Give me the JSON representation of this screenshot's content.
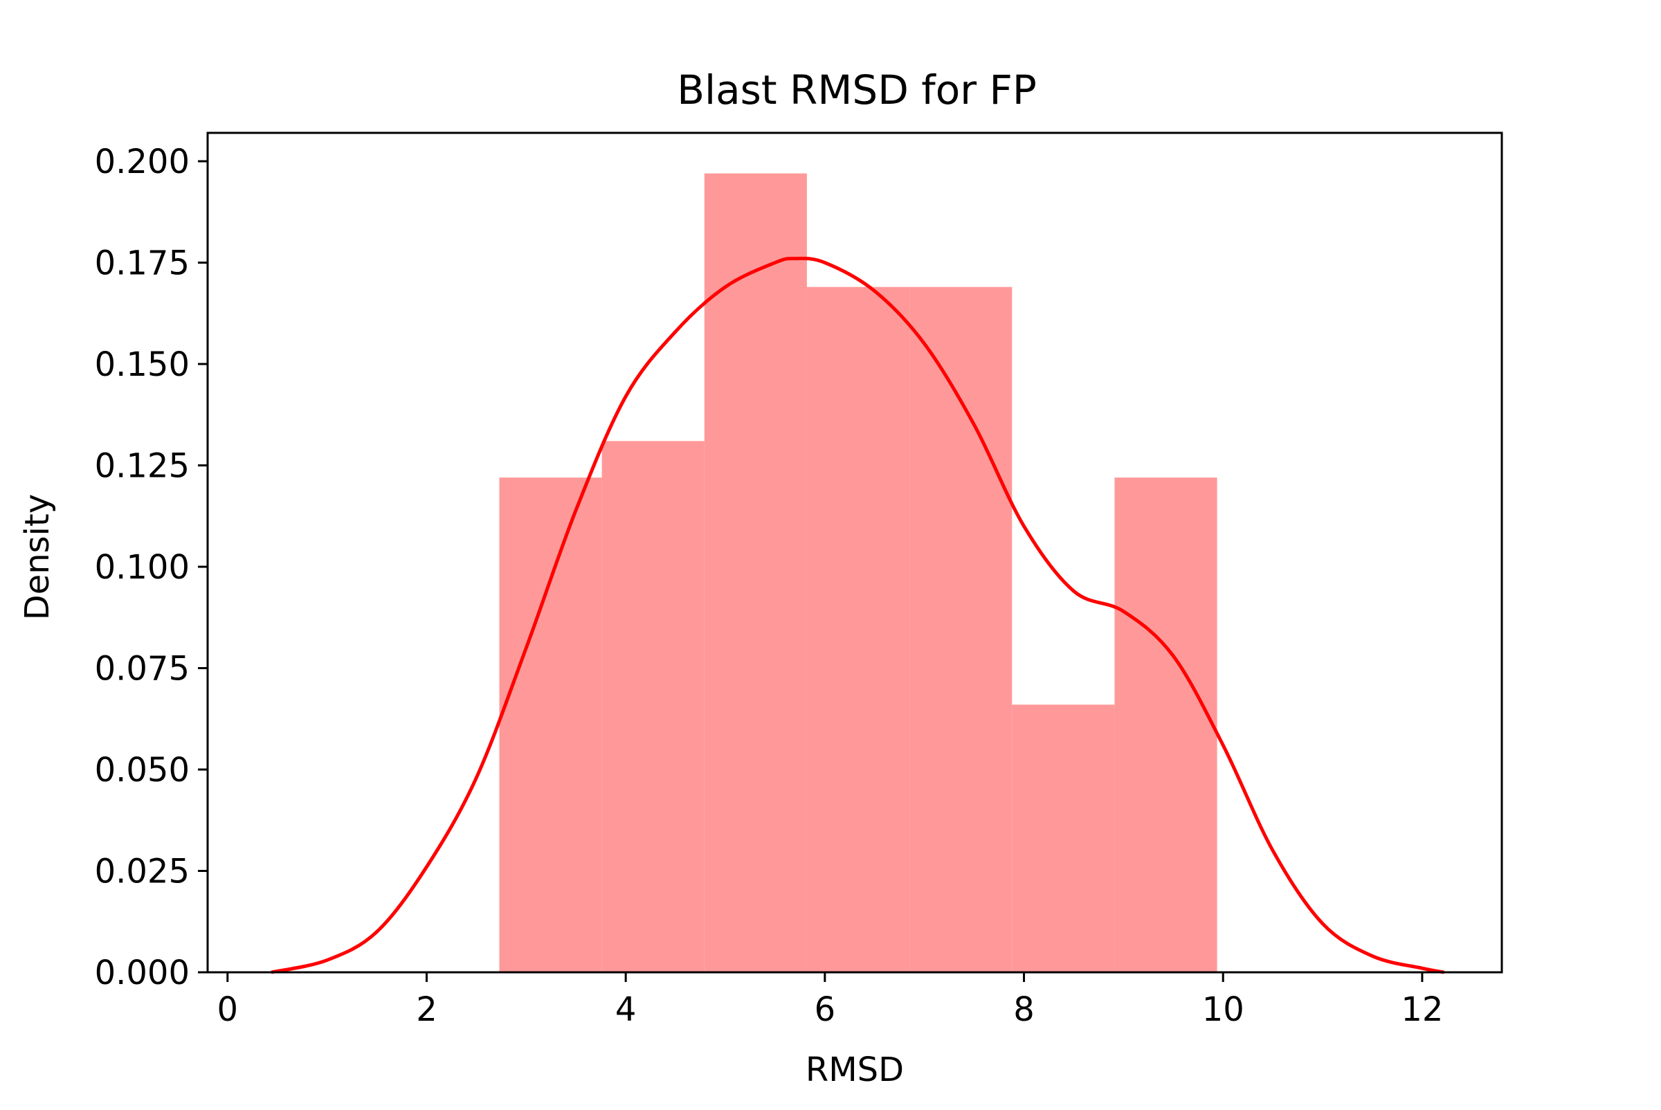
{
  "chart_data": {
    "type": "bar",
    "title": "Blast RMSD for FP",
    "xlabel": "RMSD",
    "ylabel": "Density",
    "xlim": [
      -0.2,
      12.8
    ],
    "ylim": [
      0,
      0.207
    ],
    "grid": false,
    "legend": "none",
    "xticks": [
      0,
      2,
      4,
      6,
      8,
      10,
      12
    ],
    "xtick_labels": [
      "0",
      "2",
      "4",
      "6",
      "8",
      "10",
      "12"
    ],
    "yticks": [
      0,
      0.025,
      0.05,
      0.075,
      0.1,
      0.125,
      0.15,
      0.175,
      0.2
    ],
    "ytick_labels": [
      "0.000",
      "0.025",
      "0.050",
      "0.075",
      "0.100",
      "0.125",
      "0.150",
      "0.175",
      "0.200"
    ],
    "histogram": {
      "bin_edges": [
        2.73,
        3.76,
        4.79,
        5.82,
        6.85,
        7.88,
        8.91,
        9.94
      ],
      "densities": [
        0.122,
        0.131,
        0.197,
        0.169,
        0.169,
        0.066,
        0.122
      ],
      "color": "#ff9999"
    },
    "kde": {
      "color": "#ff0000",
      "points": [
        [
          0.44,
          0.0
        ],
        [
          1.0,
          0.003
        ],
        [
          1.5,
          0.01
        ],
        [
          2.0,
          0.026
        ],
        [
          2.5,
          0.048
        ],
        [
          3.0,
          0.08
        ],
        [
          3.5,
          0.114
        ],
        [
          4.0,
          0.142
        ],
        [
          4.5,
          0.158
        ],
        [
          5.0,
          0.169
        ],
        [
          5.5,
          0.175
        ],
        [
          5.7,
          0.176
        ],
        [
          6.0,
          0.175
        ],
        [
          6.5,
          0.168
        ],
        [
          7.0,
          0.155
        ],
        [
          7.5,
          0.135
        ],
        [
          8.0,
          0.11
        ],
        [
          8.5,
          0.094
        ],
        [
          9.0,
          0.089
        ],
        [
          9.5,
          0.078
        ],
        [
          10.0,
          0.056
        ],
        [
          10.5,
          0.03
        ],
        [
          11.0,
          0.012
        ],
        [
          11.5,
          0.004
        ],
        [
          12.0,
          0.001
        ],
        [
          12.22,
          0.0
        ]
      ]
    }
  }
}
